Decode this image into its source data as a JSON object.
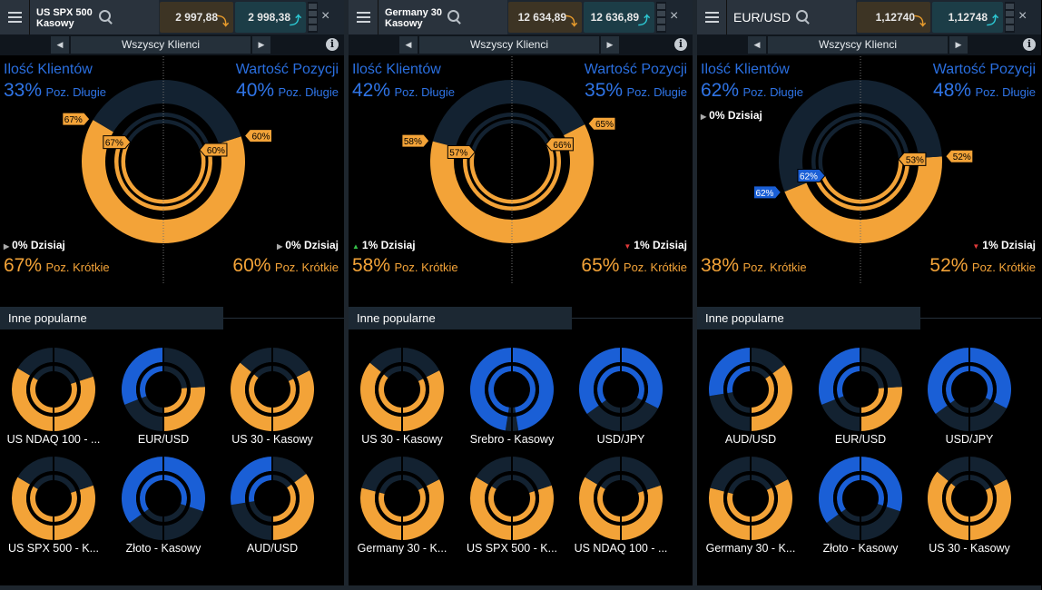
{
  "common": {
    "menu_label": "",
    "sub_title": "Wszyscy Klienci",
    "clients_label": "Ilość Klientów",
    "value_label": "Wartość Pozycji",
    "long_label": "Poz. Długie",
    "short_label": "Poz. Krótkie",
    "popular_label": "Inne popularne",
    "today_suffix": "Dzisiaj",
    "arrow_left": "◀",
    "arrow_right": "▶",
    "info": "i",
    "close": "×",
    "sell_arrow": "⤵",
    "buy_arrow": "⤴",
    "tri_neutral": "▶",
    "tri_up": "▲",
    "tri_down": "▼",
    "colors": {
      "blue": "#1a5fd6",
      "orange": "#f3a338",
      "dark": "#132231"
    }
  },
  "panels": [
    {
      "symbol": "US SPX 500\nKasowy",
      "symbol_big": false,
      "sell": "2 997,88",
      "buy": "2 998,38",
      "clients_long": "33%",
      "clients_short": "67%",
      "value_long": "40%",
      "value_short": "60%",
      "left_today": "0%",
      "left_today_dir": "neutral",
      "right_today": "0%",
      "right_today_dir": "neutral",
      "donut": {
        "clients_short": 67,
        "value_short": 60,
        "sentiment_long": 33,
        "sentiment_short": 67
      },
      "tags": {
        "outer_left": "67%",
        "inner_left": "67%",
        "inner_right": "60%",
        "outer_right": "60%"
      },
      "mini": [
        {
          "name": "US NDAQ 100 - ...",
          "left": 67,
          "right": 60
        },
        {
          "name": "EUR/USD",
          "left": 38,
          "right": 52
        },
        {
          "name": "US 30 - Kasowy",
          "left": 72,
          "right": 65
        },
        {
          "name": "US SPX 500 - K...",
          "left": 67,
          "right": 60
        },
        {
          "name": "Złoto - Kasowy",
          "left": 30,
          "right": 40
        },
        {
          "name": "AUD/USD",
          "left": 45,
          "right": 70
        }
      ]
    },
    {
      "symbol": "Germany 30\nKasowy",
      "symbol_big": false,
      "sell": "12 634,89",
      "buy": "12 636,89",
      "clients_long": "42%",
      "clients_short": "58%",
      "value_long": "35%",
      "value_short": "65%",
      "left_today": "1%",
      "left_today_dir": "up",
      "right_today": "1%",
      "right_today_dir": "down",
      "donut": {
        "clients_short": 58,
        "value_short": 65
      },
      "tags": {
        "outer_left": "58%",
        "inner_left": "57%",
        "inner_right": "66%",
        "outer_right": "65%"
      },
      "mini": [
        {
          "name": "US 30 - Kasowy",
          "left": 72,
          "right": 65
        },
        {
          "name": "Srebro - Kasowy",
          "left": 5,
          "right": 5
        },
        {
          "name": "USD/JPY",
          "left": 30,
          "right": 35
        },
        {
          "name": "Germany 30 - K...",
          "left": 58,
          "right": 65
        },
        {
          "name": "US SPX 500 - K...",
          "left": 67,
          "right": 60
        },
        {
          "name": "US NDAQ 100 - ...",
          "left": 67,
          "right": 60
        }
      ]
    },
    {
      "symbol": "EUR/USD",
      "symbol_big": true,
      "sell": "1,12740",
      "buy": "1,12748",
      "clients_long": "62%",
      "clients_short": "38%",
      "value_long": "48%",
      "value_short": "52%",
      "left_today": "0%",
      "left_today_dir": "neutral",
      "right_today": "1%",
      "right_today_dir": "down",
      "donut": {
        "clients_short": 38,
        "value_short": 52
      },
      "tags": {
        "outer_left": "62%",
        "inner_left": "62%",
        "inner_right": "53%",
        "outer_right": "52%"
      },
      "mini": [
        {
          "name": "AUD/USD",
          "left": 45,
          "right": 70
        },
        {
          "name": "EUR/USD",
          "left": 38,
          "right": 52
        },
        {
          "name": "USD/JPY",
          "left": 30,
          "right": 35
        },
        {
          "name": "Germany 30 - K...",
          "left": 58,
          "right": 65
        },
        {
          "name": "Złoto - Kasowy",
          "left": 30,
          "right": 40
        },
        {
          "name": "US 30 - Kasowy",
          "left": 72,
          "right": 65
        }
      ]
    }
  ]
}
